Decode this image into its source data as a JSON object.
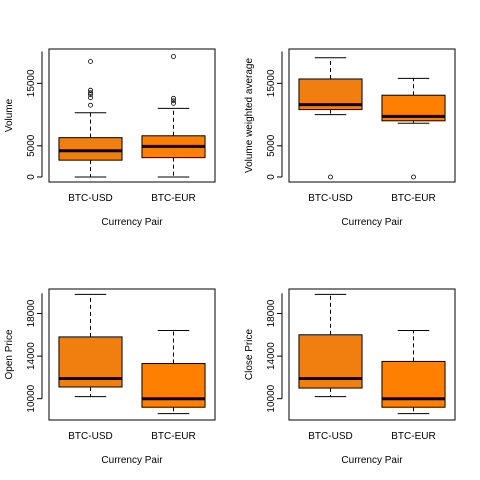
{
  "chart_data": [
    {
      "type": "boxplot",
      "xlabel": "Currency Pair",
      "ylabel": "Volume",
      "ylim": [
        -800,
        20500
      ],
      "yticks": [
        0,
        5000,
        15000
      ],
      "categories": [
        "BTC-USD",
        "BTC-EUR"
      ],
      "boxes": [
        {
          "name": "BTC-USD",
          "color": "#f07f0f",
          "whisker_low": 0,
          "q1": 2700,
          "median": 4200,
          "q3": 6300,
          "whisker_high": 10300,
          "outliers": [
            11500,
            12700,
            13200,
            13500,
            13900,
            18500
          ]
        },
        {
          "name": "BTC-EUR",
          "color": "#ff7f00",
          "whisker_low": 0,
          "q1": 3100,
          "median": 4900,
          "q3": 6600,
          "whisker_high": 11000,
          "outliers": [
            11800,
            12200,
            12600,
            19300
          ]
        }
      ]
    },
    {
      "type": "boxplot",
      "xlabel": "Currency Pair",
      "ylabel": "Volume weighted average",
      "ylim": [
        -800,
        20500
      ],
      "yticks": [
        0,
        5000,
        15000
      ],
      "categories": [
        "BTC-USD",
        "BTC-EUR"
      ],
      "boxes": [
        {
          "name": "BTC-USD",
          "color": "#f07f0f",
          "whisker_low": 10000,
          "q1": 10800,
          "median": 11600,
          "q3": 15700,
          "whisker_high": 19100,
          "outliers": [
            0
          ]
        },
        {
          "name": "BTC-EUR",
          "color": "#ff7f00",
          "whisker_low": 8600,
          "q1": 9000,
          "median": 9700,
          "q3": 13100,
          "whisker_high": 15800,
          "outliers": [
            0
          ]
        }
      ]
    },
    {
      "type": "boxplot",
      "xlabel": "Currency Pair",
      "ylabel": "Open Price",
      "ylim": [
        8000,
        20300
      ],
      "yticks": [
        10000,
        14000,
        18000
      ],
      "categories": [
        "BTC-USD",
        "BTC-EUR"
      ],
      "boxes": [
        {
          "name": "BTC-USD",
          "color": "#f07f0f",
          "whisker_low": 10200,
          "q1": 11100,
          "median": 11900,
          "q3": 15800,
          "whisker_high": 19800,
          "outliers": []
        },
        {
          "name": "BTC-EUR",
          "color": "#ff7f00",
          "whisker_low": 8600,
          "q1": 9200,
          "median": 10000,
          "q3": 13300,
          "whisker_high": 16400,
          "outliers": []
        }
      ]
    },
    {
      "type": "boxplot",
      "xlabel": "Currency Pair",
      "ylabel": "Close Price",
      "ylim": [
        8000,
        20300
      ],
      "yticks": [
        10000,
        14000,
        18000
      ],
      "categories": [
        "BTC-USD",
        "BTC-EUR"
      ],
      "boxes": [
        {
          "name": "BTC-USD",
          "color": "#f07f0f",
          "whisker_low": 10200,
          "q1": 11000,
          "median": 11900,
          "q3": 16000,
          "whisker_high": 19800,
          "outliers": []
        },
        {
          "name": "BTC-EUR",
          "color": "#ff7f00",
          "whisker_low": 8600,
          "q1": 9200,
          "median": 10000,
          "q3": 13500,
          "whisker_high": 16400,
          "outliers": []
        }
      ]
    }
  ]
}
